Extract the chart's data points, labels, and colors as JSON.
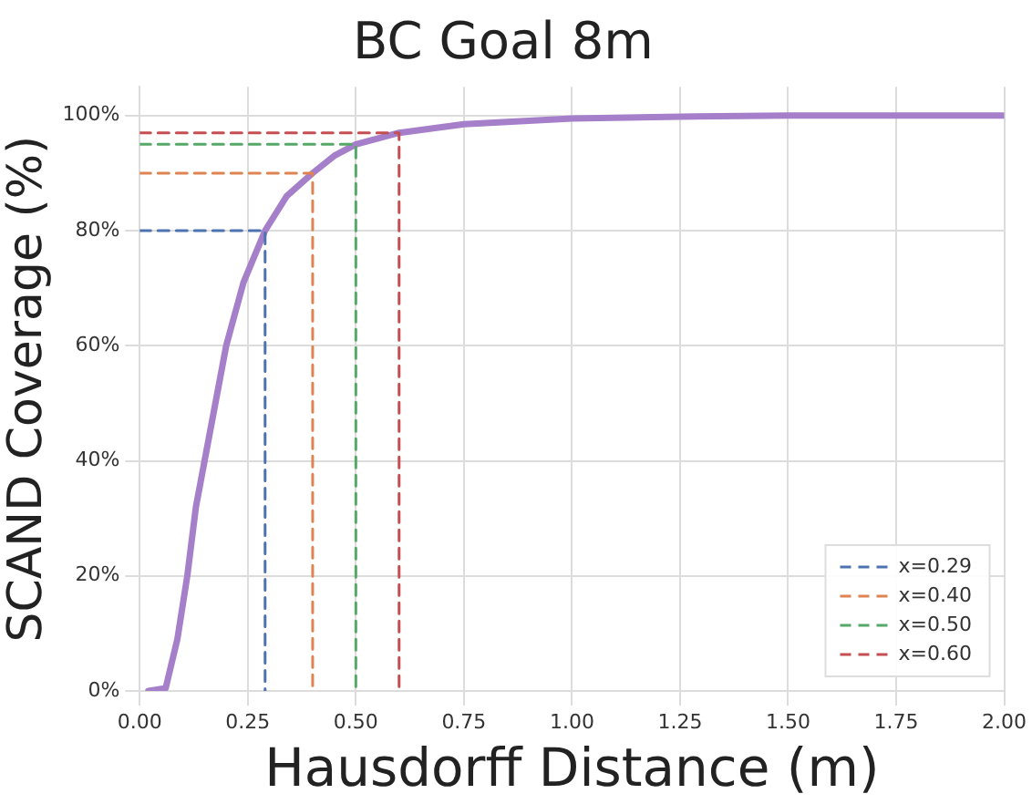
{
  "chart_data": {
    "type": "line",
    "title": "BC Goal 8m",
    "xlabel": "Hausdorff Distance (m)",
    "ylabel": "SCAND Coverage (%)",
    "xlim": [
      0,
      2
    ],
    "xticks": [
      {
        "value": 0,
        "label": "0.00"
      },
      {
        "value": 0.25,
        "label": "0.25"
      },
      {
        "value": 0.5,
        "label": "0.50"
      },
      {
        "value": 0.75,
        "label": "0.75"
      },
      {
        "value": 1,
        "label": "1.00"
      },
      {
        "value": 1.25,
        "label": "1.25"
      },
      {
        "value": 1.5,
        "label": "1.50"
      },
      {
        "value": 1.75,
        "label": "1.75"
      },
      {
        "value": 2,
        "label": "2.00"
      }
    ],
    "ylim": [
      0,
      105
    ],
    "yticks": [
      {
        "value": 0,
        "label": "0%"
      },
      {
        "value": 20,
        "label": "20%"
      },
      {
        "value": 40,
        "label": "40%"
      },
      {
        "value": 60,
        "label": "60%"
      },
      {
        "value": 80,
        "label": "80%"
      },
      {
        "value": 100,
        "label": "100%"
      }
    ],
    "grid": true,
    "legend": "bottom right",
    "marker": "none",
    "series": [
      {
        "color": "#a57fc9",
        "line_style": "solid",
        "x": [
          0.02,
          0.06,
          0.087,
          0.11,
          0.13,
          0.16,
          0.2,
          0.24,
          0.29,
          0.34,
          0.4,
          0.45,
          0.5,
          0.6,
          0.75,
          1.0,
          1.25,
          1.5,
          2.0
        ],
        "values": [
          0,
          0.5,
          9,
          20,
          32,
          44,
          60,
          71,
          80,
          86,
          90,
          93,
          95,
          97,
          98.5,
          99.5,
          99.8,
          100,
          100
        ]
      },
      {
        "name": "x=0.29",
        "color": "#4c72b0",
        "line_style": "dashed",
        "x": [
          0,
          0.29,
          0.29
        ],
        "values": [
          80,
          80,
          0
        ]
      },
      {
        "name": "x=0.40",
        "color": "#dd8452",
        "line_style": "dashed",
        "x": [
          0,
          0.4,
          0.4
        ],
        "values": [
          90,
          90,
          0
        ]
      },
      {
        "name": "x=0.50",
        "color": "#55a868",
        "line_style": "dashed",
        "x": [
          0,
          0.5,
          0.5
        ],
        "values": [
          95,
          95,
          0
        ]
      },
      {
        "name": "x=0.60",
        "color": "#c44e52",
        "line_style": "dashed",
        "x": [
          0,
          0.6,
          0.6
        ],
        "values": [
          97,
          97,
          0
        ]
      }
    ]
  }
}
